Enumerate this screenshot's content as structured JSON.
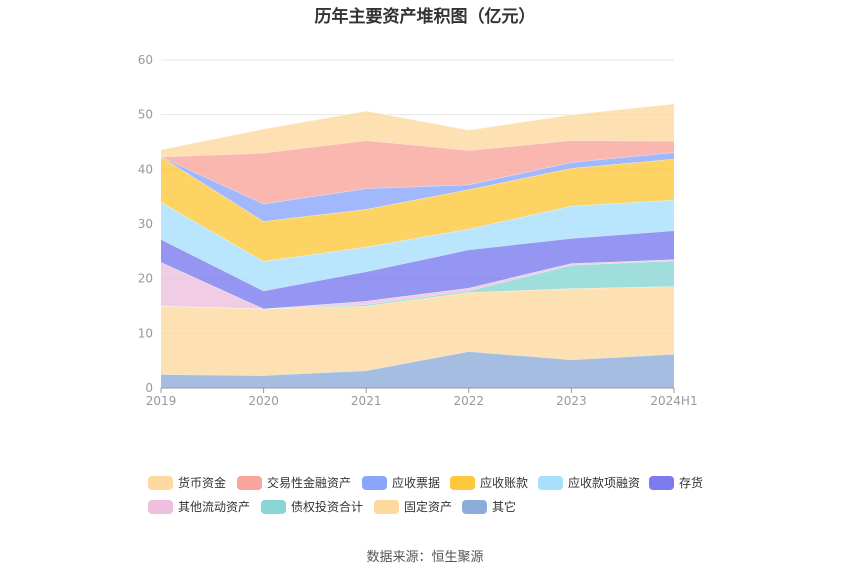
{
  "title": "历年主要资产堆积图（亿元）",
  "source": "数据来源：恒生聚源",
  "chart_data": {
    "type": "area",
    "stacked": true,
    "categories": [
      "2019",
      "2020",
      "2021",
      "2022",
      "2023",
      "2024H1"
    ],
    "ylim": [
      0,
      60
    ],
    "yticks": [
      0,
      10,
      20,
      30,
      40,
      50,
      60
    ],
    "grid": true,
    "legend_position": "bottom",
    "series": [
      {
        "name": "其它",
        "color": "#8eacd9",
        "values": [
          2.5,
          2.3,
          3.2,
          6.7,
          5.2,
          6.2
        ]
      },
      {
        "name": "固定资产",
        "color": "#fdd9a0",
        "values": [
          12.5,
          12.2,
          11.8,
          10.8,
          13.0,
          12.4
        ]
      },
      {
        "name": "债权投资合计",
        "color": "#88d6d6",
        "values": [
          0,
          0,
          0.3,
          0.3,
          4.3,
          4.7
        ]
      },
      {
        "name": "其他流动资产",
        "color": "#eebfdf",
        "values": [
          8.0,
          0,
          0.6,
          0.5,
          0.3,
          0.2
        ]
      },
      {
        "name": "存货",
        "color": "#7b7bef",
        "values": [
          4.2,
          3.3,
          5.4,
          7.0,
          4.6,
          5.3
        ]
      },
      {
        "name": "应收款项融资",
        "color": "#a8e0fb",
        "values": [
          6.8,
          5.4,
          4.5,
          3.8,
          5.9,
          5.6
        ]
      },
      {
        "name": "应收账款",
        "color": "#fdc83c",
        "values": [
          8.3,
          7.3,
          6.9,
          7.2,
          6.9,
          7.5
        ]
      },
      {
        "name": "应收票据",
        "color": "#8aa6fb",
        "values": [
          0,
          3.2,
          3.8,
          0.9,
          1.1,
          1.2
        ]
      },
      {
        "name": "交易性金融资产",
        "color": "#f9a59c",
        "values": [
          0,
          9.3,
          8.8,
          6.3,
          4.0,
          2.1
        ]
      },
      {
        "name": "货币资金",
        "color": "#fdd9a0",
        "values": [
          1.3,
          4.4,
          5.4,
          3.7,
          4.7,
          6.8
        ]
      }
    ]
  }
}
